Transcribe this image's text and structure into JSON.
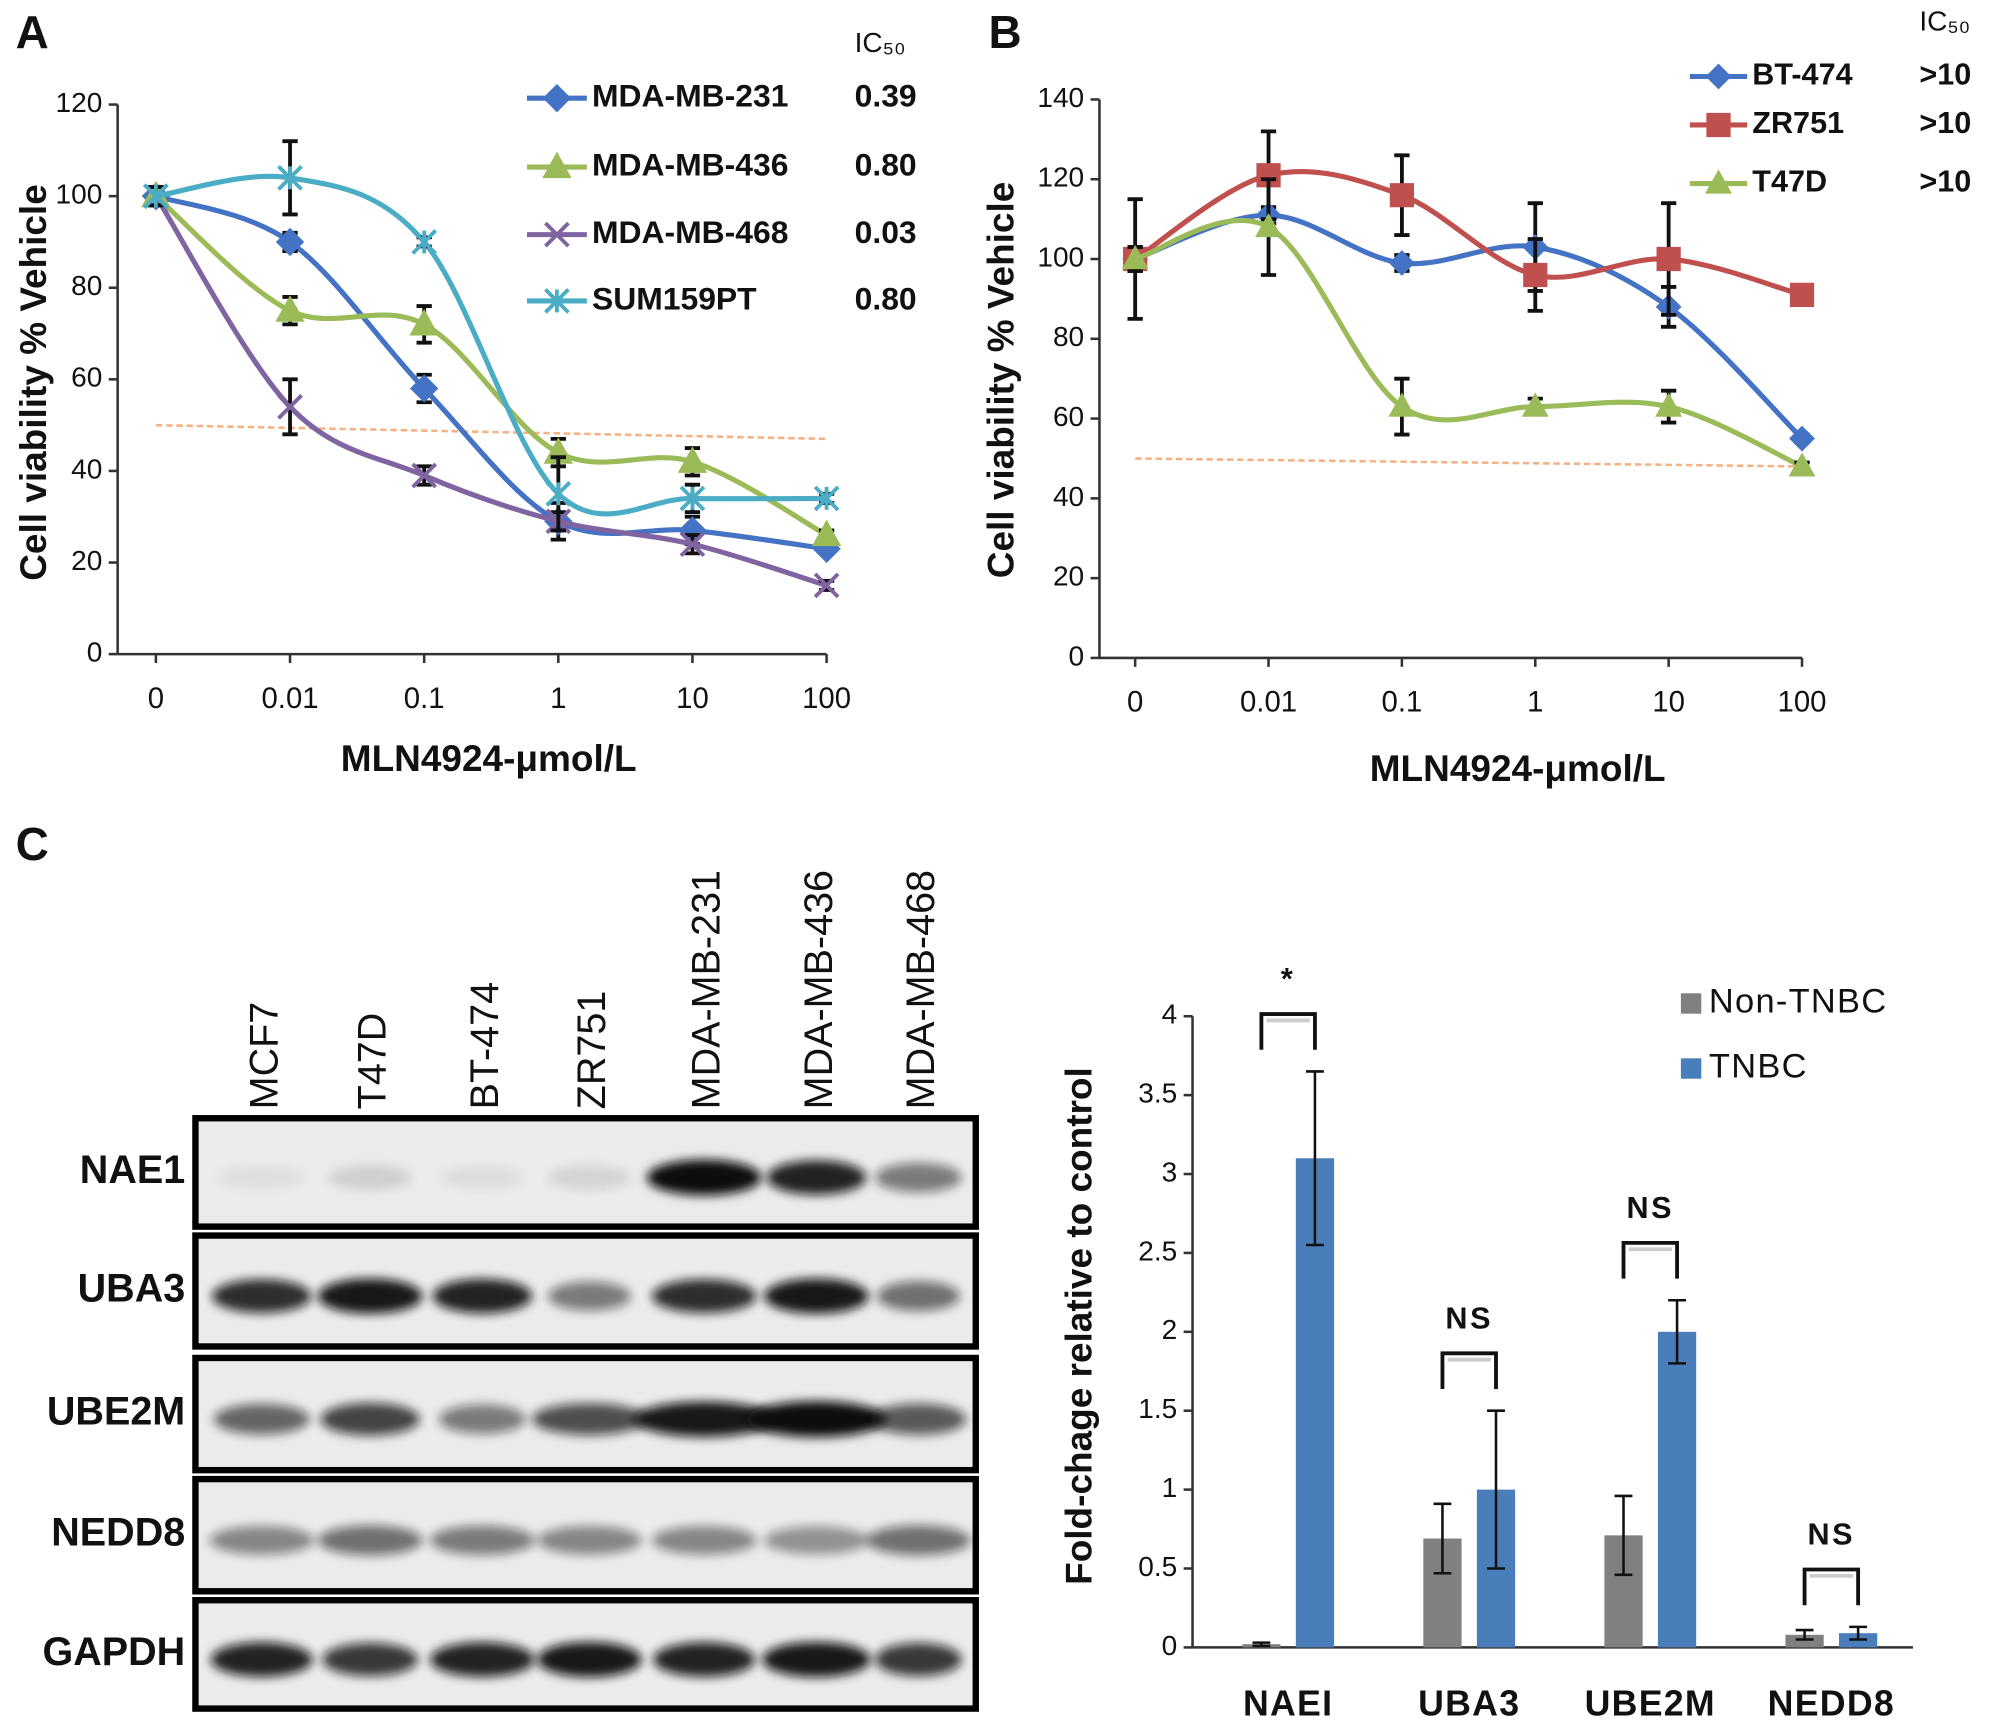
{
  "chart_data": [
    {
      "type": "line",
      "panel": "A",
      "ylabel": "Cell viability % Vehicle",
      "xlabel": "MLN4924-μmol/L",
      "categories": [
        "0",
        "0.01",
        "0.1",
        "1",
        "10",
        "100"
      ],
      "ylim": [
        0,
        120
      ],
      "yticks": [
        0,
        20,
        40,
        60,
        80,
        100,
        120
      ],
      "ic50_title": "IC₅₀",
      "reference_line": {
        "values": [
          50,
          47
        ],
        "color": "#f4b183"
      },
      "series": [
        {
          "name": "MDA-MB-231",
          "ic50": "0.39",
          "color": "#4472c4",
          "marker": "diamond",
          "values": [
            100,
            90,
            58,
            29,
            27,
            23
          ],
          "errors": [
            2,
            2,
            3,
            4,
            3,
            1
          ]
        },
        {
          "name": "MDA-MB-436",
          "ic50": "0.80",
          "color": "#9bbb59",
          "marker": "triangle",
          "values": [
            100,
            75,
            72,
            44,
            42,
            26
          ],
          "errors": [
            2,
            3,
            4,
            3,
            3,
            1
          ]
        },
        {
          "name": "MDA-MB-468",
          "ic50": "0.03",
          "color": "#8064a2",
          "marker": "x",
          "values": [
            100,
            54,
            39,
            29,
            24,
            15
          ],
          "errors": [
            2,
            6,
            2,
            2,
            2,
            1
          ]
        },
        {
          "name": "SUM159PT",
          "ic50": "0.80",
          "color": "#4bacc6",
          "marker": "asterisk",
          "values": [
            100,
            104,
            90,
            35,
            34,
            34
          ],
          "errors": [
            2,
            8,
            1,
            8,
            3,
            1
          ]
        }
      ]
    },
    {
      "type": "line",
      "panel": "B",
      "ylabel": "Cell viability % Vehicle",
      "xlabel": "MLN4924-μmol/L",
      "categories": [
        "0",
        "0.01",
        "0.1",
        "1",
        "10",
        "100"
      ],
      "ylim": [
        0,
        140
      ],
      "yticks": [
        0,
        20,
        40,
        60,
        80,
        100,
        120,
        140
      ],
      "ic50_title": "IC₅₀",
      "reference_line": {
        "values": [
          50,
          48
        ],
        "color": "#f4b183"
      },
      "series": [
        {
          "name": "BT-474",
          "ic50": ">10",
          "color": "#4472c4",
          "marker": "diamond",
          "values": [
            100,
            111,
            99,
            103,
            88,
            55
          ],
          "errors": [
            15,
            2,
            2,
            11,
            5,
            1
          ]
        },
        {
          "name": "ZR751",
          "ic50": ">10",
          "color": "#c0504d",
          "marker": "square",
          "values": [
            100,
            121,
            116,
            96,
            100,
            91
          ],
          "errors": [
            3,
            11,
            10,
            9,
            14,
            1
          ]
        },
        {
          "name": "T47D",
          "ic50": ">10",
          "color": "#9bbb59",
          "marker": "triangle",
          "values": [
            100,
            108,
            63,
            63,
            63,
            48
          ],
          "errors": [
            3,
            12,
            7,
            2,
            4,
            1
          ]
        }
      ]
    },
    {
      "type": "bar",
      "ylabel": "Fold-chage relative to control",
      "categories": [
        "NAEI",
        "UBA3",
        "UBE2M",
        "NEDD8"
      ],
      "ylim": [
        0,
        4
      ],
      "yticks": [
        0,
        0.5,
        1,
        1.5,
        2,
        2.5,
        3,
        3.5,
        4
      ],
      "annotations": [
        "*",
        "NS",
        "NS",
        "NS"
      ],
      "series": [
        {
          "name": "Non-TNBC",
          "color": "#808080",
          "values": [
            0.02,
            0.69,
            0.71,
            0.08
          ],
          "errors": [
            0.01,
            0.22,
            0.25,
            0.03
          ]
        },
        {
          "name": "TNBC",
          "color": "#4a7ebb",
          "values": [
            3.1,
            1.0,
            2.0,
            0.09
          ],
          "errors": [
            0.55,
            0.5,
            0.2,
            0.04
          ]
        }
      ]
    }
  ],
  "blot": {
    "panel": "C",
    "lanes": [
      "MCF7",
      "T47D",
      "BT-474",
      "ZR751",
      "MDA-MB-231",
      "MDA-MB-436",
      "MDA-MB-468"
    ],
    "proteins": [
      "NAE1",
      "UBA3",
      "UBE2M",
      "NEDD8",
      "GAPDH"
    ]
  }
}
